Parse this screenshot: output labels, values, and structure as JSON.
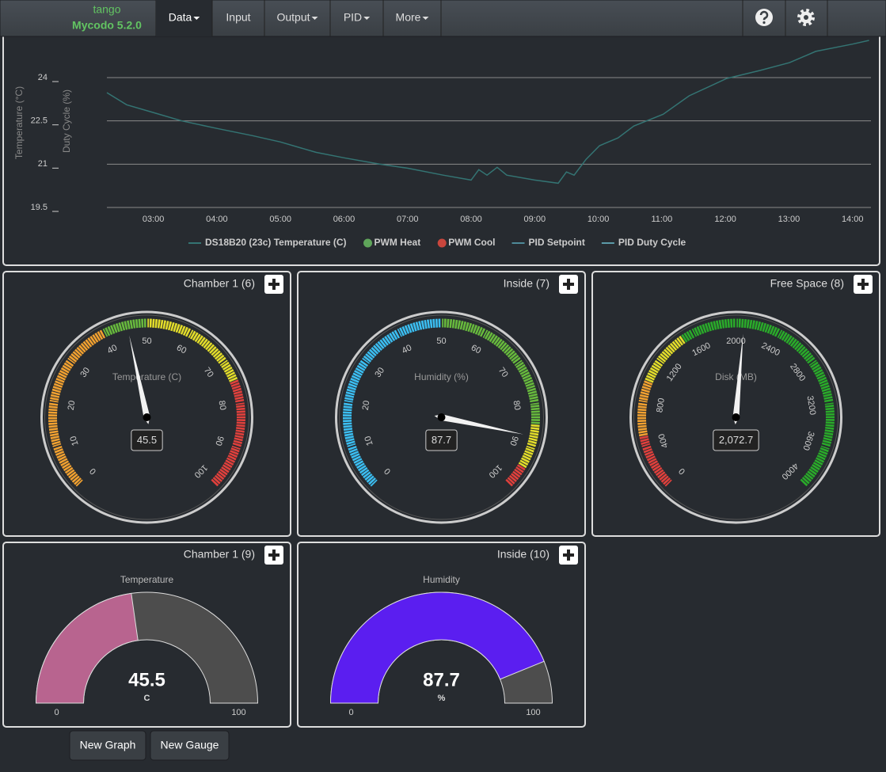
{
  "nav": {
    "brand": "tango",
    "version": "Mycodo 5.2.0",
    "items": [
      {
        "label": "Data",
        "dropdown": true,
        "active": true
      },
      {
        "label": "Input",
        "dropdown": false,
        "active": false
      },
      {
        "label": "Output",
        "dropdown": true,
        "active": false
      },
      {
        "label": "PID",
        "dropdown": true,
        "active": false
      },
      {
        "label": "More",
        "dropdown": true,
        "active": false
      }
    ]
  },
  "chart_data": {
    "type": "line",
    "ylabel": "Temperature (°C)",
    "y2label": "Duty Cycle (%)",
    "x": [
      2.27,
      2.58,
      3.0,
      3.45,
      4.0,
      4.56,
      5.0,
      5.56,
      6.0,
      6.56,
      7.0,
      7.56,
      8.0,
      8.12,
      8.25,
      8.41,
      8.56,
      9.0,
      9.37,
      9.5,
      9.62,
      9.81,
      10.02,
      10.31,
      10.56,
      11.02,
      11.43,
      12.02,
      12.55,
      13.01,
      13.42,
      14.0,
      14.26
    ],
    "series": [
      {
        "name": "DS18B20 (23c) Temperature (C)",
        "color": "#347473",
        "marker": "line",
        "values": [
          23.48,
          23.06,
          22.79,
          22.5,
          22.24,
          21.99,
          21.77,
          21.41,
          21.22,
          21.0,
          20.86,
          20.62,
          20.45,
          20.81,
          20.62,
          20.89,
          20.62,
          20.45,
          20.34,
          20.73,
          20.62,
          21.17,
          21.64,
          21.91,
          22.32,
          22.73,
          23.37,
          23.97,
          24.25,
          24.52,
          24.91,
          25.16,
          25.29
        ]
      },
      {
        "name": "PWM Heat",
        "color": "#5fa55a",
        "marker": "circle"
      },
      {
        "name": "PWM Cool",
        "color": "#c9463d",
        "marker": "circle"
      },
      {
        "name": "PID Setpoint",
        "color": "#4e8a99",
        "marker": "line"
      },
      {
        "name": "PID Duty Cycle",
        "color": "#5b9aa8",
        "marker": "line"
      }
    ],
    "xlim": [
      2.27,
      14.29
    ],
    "xticks": [
      {
        "value": 3,
        "label": "03:00"
      },
      {
        "value": 4,
        "label": "04:00"
      },
      {
        "value": 5,
        "label": "05:00"
      },
      {
        "value": 6,
        "label": "06:00"
      },
      {
        "value": 7,
        "label": "07:00"
      },
      {
        "value": 8,
        "label": "08:00"
      },
      {
        "value": 9,
        "label": "09:00"
      },
      {
        "value": 10,
        "label": "10:00"
      },
      {
        "value": 11,
        "label": "11:00"
      },
      {
        "value": 12,
        "label": "12:00"
      },
      {
        "value": 13,
        "label": "13:00"
      },
      {
        "value": 14,
        "label": "14:00"
      }
    ],
    "ylim": [
      19.5,
      25.4
    ],
    "yticks": [
      19.5,
      21,
      22.5,
      24
    ],
    "grid": true
  },
  "gauges": [
    {
      "type": "radial",
      "title": "Chamber 1 (6)",
      "units": "Temperature (C)",
      "min": 0,
      "max": 100,
      "ticks": [
        0,
        10,
        20,
        30,
        40,
        50,
        60,
        70,
        80,
        90,
        100
      ],
      "bands": [
        {
          "from": 0,
          "to": 40,
          "color": "#f0a030"
        },
        {
          "from": 40,
          "to": 50,
          "color": "#67b93d"
        },
        {
          "from": 50,
          "to": 75,
          "color": "#e2dc2a"
        },
        {
          "from": 75,
          "to": 100,
          "color": "#e0403c"
        }
      ],
      "value": 45.5
    },
    {
      "type": "radial",
      "title": "Inside (7)",
      "units": "Humidity (%)",
      "min": 0,
      "max": 100,
      "ticks": [
        0,
        10,
        20,
        30,
        40,
        50,
        60,
        70,
        80,
        90,
        100
      ],
      "bands": [
        {
          "from": 0,
          "to": 50,
          "color": "#3bbdf0"
        },
        {
          "from": 50,
          "to": 85,
          "color": "#67b93d"
        },
        {
          "from": 85,
          "to": 95,
          "color": "#e2dc2a"
        },
        {
          "from": 95,
          "to": 100,
          "color": "#e0403c"
        }
      ],
      "value": 87.7
    },
    {
      "type": "radial",
      "title": "Free Space (8)",
      "units": "Disk (MB)",
      "min": 0,
      "max": 4000,
      "ticks": [
        0,
        400,
        800,
        1200,
        1600,
        2000,
        2400,
        2800,
        3200,
        3600,
        4000
      ],
      "bands": [
        {
          "from": 0,
          "to": 500,
          "color": "#e0403c"
        },
        {
          "from": 500,
          "to": 1000,
          "color": "#f0a030"
        },
        {
          "from": 1000,
          "to": 1500,
          "color": "#e2dc2a"
        },
        {
          "from": 1500,
          "to": 4000,
          "color": "#2aaa2a"
        }
      ],
      "value": 2072.7,
      "value_label": "2,072.7"
    },
    {
      "type": "solid",
      "title": "Chamber 1 (9)",
      "label": "Temperature",
      "value": 45.5,
      "unit": "C",
      "min": 0,
      "max": 100,
      "color": "#b8648f"
    },
    {
      "type": "solid",
      "title": "Inside (10)",
      "label": "Humidity",
      "value": 87.7,
      "unit": "%",
      "min": 0,
      "max": 100,
      "color": "#5b1ef0"
    }
  ],
  "buttons": [
    "New Graph",
    "New Gauge"
  ]
}
